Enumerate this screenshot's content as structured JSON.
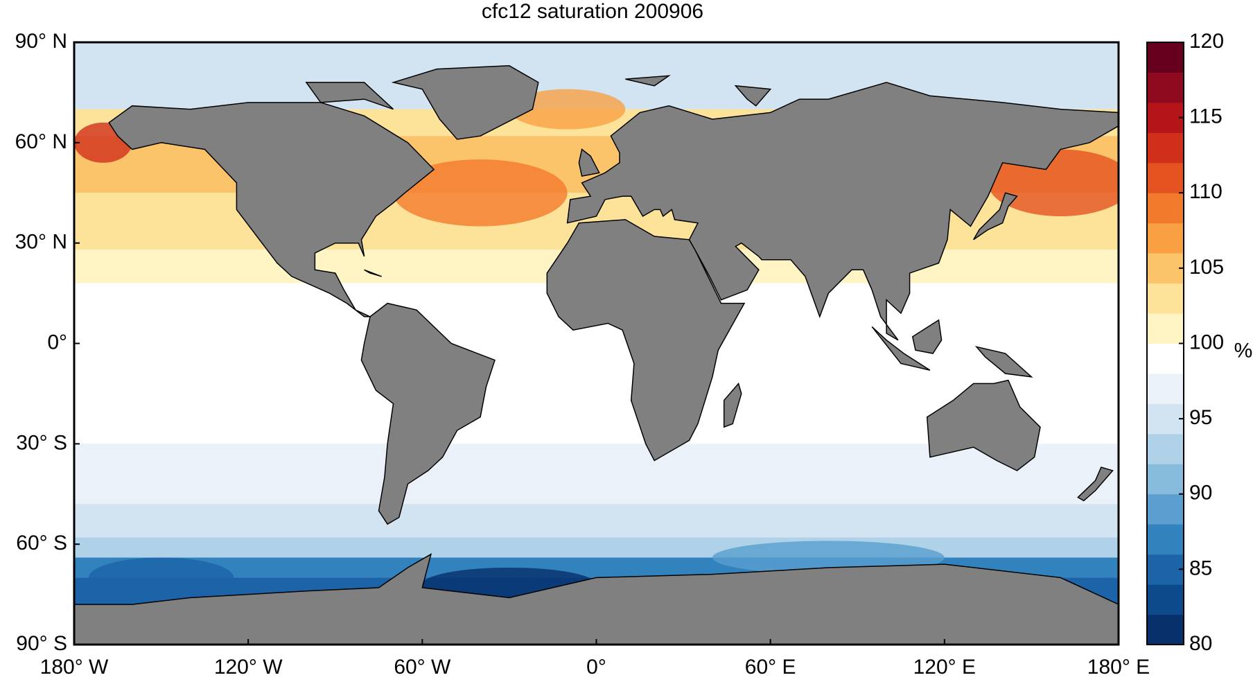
{
  "chart_data": {
    "type": "map",
    "title": "cfc12 saturation 200906",
    "xlim": [
      -180,
      180
    ],
    "ylim": [
      -90,
      90
    ],
    "xticks": [
      {
        "value": -180,
        "label": "180° W"
      },
      {
        "value": -120,
        "label": "120° W"
      },
      {
        "value": -60,
        "label": "60° W"
      },
      {
        "value": 0,
        "label": "0°"
      },
      {
        "value": 60,
        "label": "60° E"
      },
      {
        "value": 120,
        "label": "120° E"
      },
      {
        "value": 180,
        "label": "180° E"
      }
    ],
    "yticks": [
      {
        "value": 90,
        "label": "90° N"
      },
      {
        "value": 60,
        "label": "60° N"
      },
      {
        "value": 30,
        "label": "30° N"
      },
      {
        "value": 0,
        "label": "0°"
      },
      {
        "value": -30,
        "label": "30° S"
      },
      {
        "value": -60,
        "label": "60° S"
      },
      {
        "value": -90,
        "label": "90° S"
      }
    ],
    "land_color": "#808080",
    "colorbar": {
      "lim": [
        80,
        120
      ],
      "ticks": [
        80,
        85,
        90,
        95,
        100,
        105,
        110,
        115,
        120
      ],
      "label": "%",
      "colors": [
        "#08306b",
        "#0d4a8c",
        "#1d63a8",
        "#3182bd",
        "#5a9fcf",
        "#86bbdc",
        "#b0d2e8",
        "#d2e3f2",
        "#eaf1f9",
        "#ffffff",
        "#fff4c4",
        "#fde39a",
        "#fcc46a",
        "#f9a043",
        "#f27a2d",
        "#e4531f",
        "#d0301a",
        "#b51419",
        "#8f0a1e",
        "#67001f"
      ]
    }
  }
}
